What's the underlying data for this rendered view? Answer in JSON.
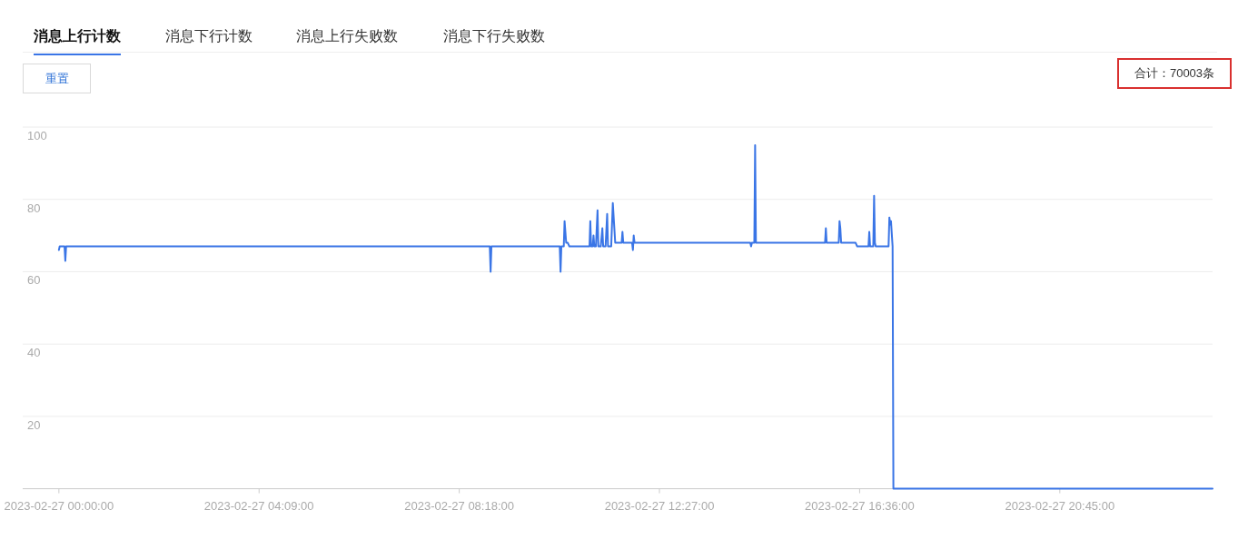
{
  "chart_data": {
    "type": "line",
    "annotations": [
      "消息上行计数",
      "消息下行计数",
      "消息上行失败数",
      "消息下行失败数",
      "重置",
      "合计：70003条"
    ],
    "x": [
      "2023-02-27T00:00",
      "2023-02-27T00:01",
      "2023-02-27T00:07",
      "2023-02-27T00:08",
      "2023-02-27T00:09",
      "2023-02-27T08:56",
      "2023-02-27T08:57",
      "2023-02-27T08:58",
      "2023-02-27T10:23",
      "2023-02-27T10:24",
      "2023-02-27T10:25",
      "2023-02-27T10:28",
      "2023-02-27T10:29",
      "2023-02-27T10:31",
      "2023-02-27T10:33",
      "2023-02-27T10:35",
      "2023-02-27T11:00",
      "2023-02-27T11:01",
      "2023-02-27T11:02",
      "2023-02-27T11:04",
      "2023-02-27T11:05",
      "2023-02-27T11:06",
      "2023-02-27T11:08",
      "2023-02-27T11:10",
      "2023-02-27T11:11",
      "2023-02-27T11:14",
      "2023-02-27T11:16",
      "2023-02-27T11:17",
      "2023-02-27T11:20",
      "2023-02-27T11:22",
      "2023-02-27T11:23",
      "2023-02-27T11:27",
      "2023-02-27T11:29",
      "2023-02-27T11:32",
      "2023-02-27T11:40",
      "2023-02-27T11:41",
      "2023-02-27T11:42",
      "2023-02-27T11:53",
      "2023-02-27T11:54",
      "2023-02-27T11:55",
      "2023-02-27T11:56",
      "2023-02-27T14:20",
      "2023-02-27T14:21",
      "2023-02-27T14:22",
      "2023-02-27T14:25",
      "2023-02-27T14:26",
      "2023-02-27T14:27",
      "2023-02-27T15:53",
      "2023-02-27T15:54",
      "2023-02-27T15:55",
      "2023-02-27T16:10",
      "2023-02-27T16:11",
      "2023-02-27T16:12",
      "2023-02-27T16:13",
      "2023-02-27T16:31",
      "2023-02-27T16:33",
      "2023-02-27T16:47",
      "2023-02-27T16:48",
      "2023-02-27T16:49",
      "2023-02-27T16:53",
      "2023-02-27T16:54",
      "2023-02-27T16:55",
      "2023-02-27T16:56",
      "2023-02-27T17:12",
      "2023-02-27T17:13",
      "2023-02-27T17:14",
      "2023-02-27T17:15",
      "2023-02-27T17:17",
      "2023-02-27T17:18",
      "2023-02-27T23:55"
    ],
    "series": [
      {
        "color": "#3a75e6",
        "values": [
          66,
          67,
          67,
          63,
          67,
          67,
          60,
          67,
          67,
          60,
          67,
          67,
          74,
          68,
          68,
          67,
          67,
          74,
          67,
          67,
          70,
          67,
          67,
          77,
          67,
          67,
          72,
          67,
          67,
          76,
          67,
          67,
          79,
          68,
          68,
          71,
          68,
          68,
          66,
          70,
          68,
          68,
          67,
          68,
          68,
          95,
          68,
          68,
          72,
          68,
          68,
          74,
          72,
          68,
          68,
          67,
          67,
          71,
          67,
          67,
          81,
          68,
          67,
          67,
          75,
          73,
          74,
          67,
          0,
          0
        ]
      }
    ],
    "xlim": [
      "2023-02-26T23:15",
      "2023-02-27T23:55"
    ],
    "xticks": [
      {
        "value": "2023-02-27T00:00",
        "label": "2023-02-27 00:00:00"
      },
      {
        "value": "2023-02-27T04:09",
        "label": "2023-02-27 04:09:00"
      },
      {
        "value": "2023-02-27T08:18",
        "label": "2023-02-27 08:18:00"
      },
      {
        "value": "2023-02-27T12:27",
        "label": "2023-02-27 12:27:00"
      },
      {
        "value": "2023-02-27T16:36",
        "label": "2023-02-27 16:36:00"
      },
      {
        "value": "2023-02-27T20:45",
        "label": "2023-02-27 20:45:00"
      }
    ],
    "ylim": [
      0,
      100
    ],
    "yticks": [
      20,
      40,
      60,
      80,
      100
    ],
    "grid": "y",
    "marker": "none",
    "line_style": "solid"
  }
}
